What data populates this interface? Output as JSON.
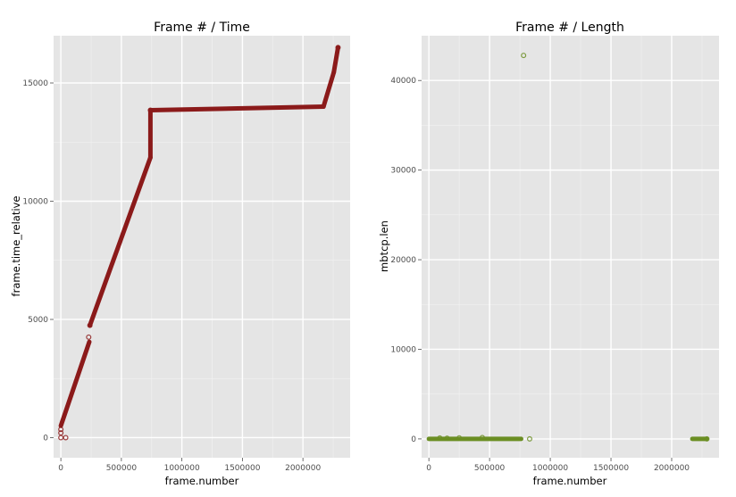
{
  "chart_data": [
    {
      "type": "scatter",
      "title": "Frame # / Time",
      "xlabel": "frame.number",
      "ylabel": "frame.time_relative",
      "xlim": [
        -60000,
        2390000
      ],
      "ylim": [
        -850,
        17000
      ],
      "xticks": [
        0,
        500000,
        1000000,
        1500000,
        2000000
      ],
      "xtick_labels": [
        "0",
        "500000",
        "1000000",
        "1500000",
        "2000000"
      ],
      "yticks": [
        0,
        5000,
        10000,
        15000
      ],
      "ytick_labels": [
        "0",
        "5000",
        "10000",
        "15000"
      ],
      "grid": true,
      "color": "#8b1a1a",
      "segments": [
        {
          "x": [
            0,
            235000
          ],
          "y": [
            500,
            4050
          ]
        },
        {
          "x": [
            240000,
            740000
          ],
          "y": [
            4750,
            11850
          ]
        },
        {
          "x": [
            740000,
            740000
          ],
          "y": [
            11850,
            13850
          ]
        },
        {
          "x": [
            740000,
            2170000
          ],
          "y": [
            13850,
            14000
          ]
        },
        {
          "x": [
            2170000,
            2255000
          ],
          "y": [
            14000,
            15450
          ]
        },
        {
          "x": [
            2255000,
            2290000
          ],
          "y": [
            15450,
            16500
          ]
        }
      ],
      "points": [
        {
          "x": 0,
          "y": 0
        },
        {
          "x": 0,
          "y": 200
        },
        {
          "x": 0,
          "y": 350
        },
        {
          "x": 40000,
          "y": 0
        },
        {
          "x": 230000,
          "y": 4250
        },
        {
          "x": 240000,
          "y": 4750
        },
        {
          "x": 740000,
          "y": 13850
        },
        {
          "x": 2290000,
          "y": 16500
        }
      ]
    },
    {
      "type": "scatter",
      "title": "Frame # / Length",
      "xlabel": "frame.number",
      "ylabel": "mbtcp.len",
      "xlim": [
        -60000,
        2390000
      ],
      "ylim": [
        -2100,
        45000
      ],
      "xticks": [
        0,
        500000,
        1000000,
        1500000,
        2000000
      ],
      "xtick_labels": [
        "0",
        "500000",
        "1000000",
        "1500000",
        "2000000"
      ],
      "yticks": [
        0,
        10000,
        20000,
        30000,
        40000
      ],
      "ytick_labels": [
        "0",
        "10000",
        "20000",
        "30000",
        "40000"
      ],
      "grid": true,
      "color": "#6b8e23",
      "segments": [
        {
          "x": [
            0,
            760000
          ],
          "y": [
            0,
            0
          ]
        },
        {
          "x": [
            2170000,
            2290000
          ],
          "y": [
            0,
            0
          ]
        }
      ],
      "points": [
        {
          "x": 780000,
          "y": 42800
        },
        {
          "x": 830000,
          "y": 0
        },
        {
          "x": 90000,
          "y": 100
        },
        {
          "x": 150000,
          "y": 80
        },
        {
          "x": 250000,
          "y": 120
        },
        {
          "x": 440000,
          "y": 150
        },
        {
          "x": 2290000,
          "y": 0
        }
      ]
    }
  ]
}
